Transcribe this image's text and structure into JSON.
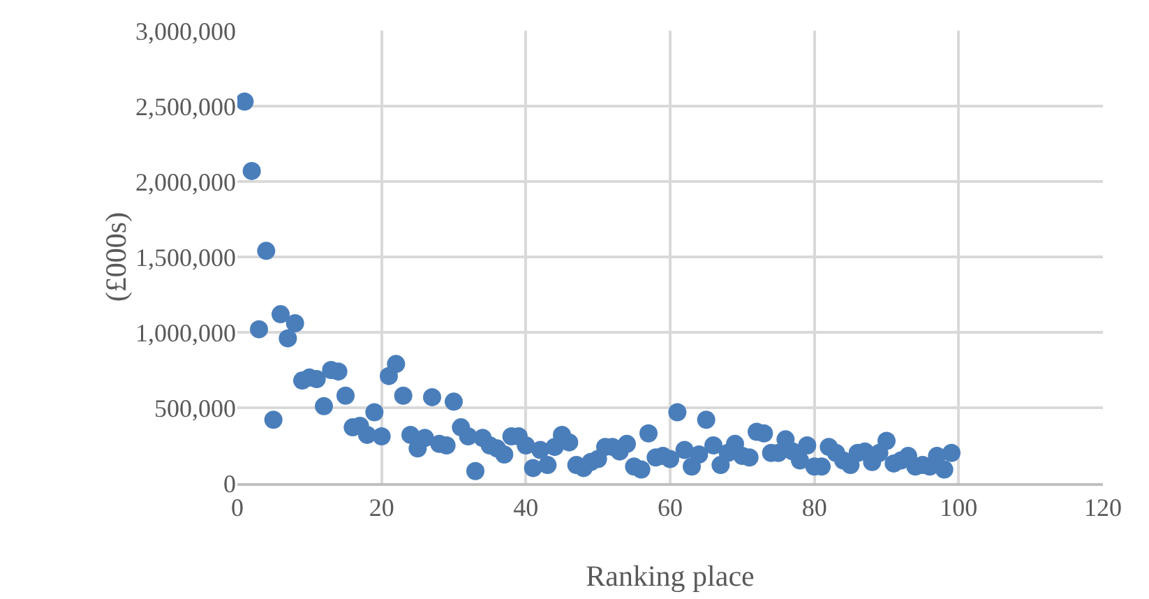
{
  "chart_data": {
    "type": "scatter",
    "xlabel": "Ranking place",
    "ylabel": "(£000s)",
    "x": [
      1,
      2,
      3,
      4,
      5,
      6,
      7,
      8,
      9,
      10,
      11,
      12,
      13,
      14,
      15,
      16,
      17,
      18,
      19,
      20,
      21,
      22,
      23,
      24,
      25,
      26,
      27,
      28,
      29,
      30,
      31,
      32,
      33,
      34,
      35,
      36,
      37,
      38,
      39,
      40,
      41,
      42,
      43,
      44,
      45,
      46,
      47,
      48,
      49,
      50,
      51,
      52,
      53,
      54,
      55,
      56,
      57,
      58,
      59,
      60,
      61,
      62,
      63,
      64,
      65,
      66,
      67,
      68,
      69,
      70,
      71,
      72,
      73,
      74,
      75,
      76,
      77,
      78,
      79,
      80,
      81,
      82,
      83,
      84,
      85,
      86,
      87,
      88,
      89,
      90,
      91,
      92,
      93,
      94,
      95,
      96,
      97,
      98,
      99
    ],
    "series": [
      {
        "color": "#4a7ebb",
        "values": [
          2530000,
          2070000,
          1020000,
          1540000,
          420000,
          1120000,
          960000,
          1060000,
          680000,
          700000,
          690000,
          510000,
          750000,
          740000,
          580000,
          370000,
          380000,
          320000,
          470000,
          310000,
          710000,
          790000,
          580000,
          320000,
          230000,
          300000,
          570000,
          260000,
          250000,
          540000,
          370000,
          310000,
          80000,
          300000,
          250000,
          230000,
          190000,
          310000,
          310000,
          250000,
          100000,
          220000,
          120000,
          240000,
          320000,
          270000,
          120000,
          100000,
          140000,
          160000,
          240000,
          240000,
          210000,
          260000,
          110000,
          90000,
          330000,
          170000,
          180000,
          160000,
          470000,
          220000,
          110000,
          190000,
          420000,
          250000,
          120000,
          200000,
          260000,
          180000,
          170000,
          340000,
          330000,
          200000,
          200000,
          290000,
          210000,
          150000,
          250000,
          110000,
          110000,
          240000,
          200000,
          150000,
          120000,
          200000,
          210000,
          140000,
          200000,
          280000,
          130000,
          150000,
          180000,
          110000,
          120000,
          110000,
          180000,
          90000,
          200000
        ]
      }
    ],
    "xlim": [
      0,
      120
    ],
    "xticks": [
      0,
      20,
      40,
      60,
      80,
      100,
      120
    ],
    "ylim": [
      0,
      3000000
    ],
    "yticks": [
      0,
      {
        "value": 500000,
        "label": "500,000"
      },
      {
        "value": 1000000,
        "label": "1,000,000"
      },
      {
        "value": 1500000,
        "label": "1,500,000"
      },
      {
        "value": 2000000,
        "label": "2,000,000"
      },
      {
        "value": 2500000,
        "label": "2,500,000"
      },
      {
        "value": 3000000,
        "label": "3,000,000"
      }
    ],
    "grid": true,
    "marker": "circle"
  }
}
